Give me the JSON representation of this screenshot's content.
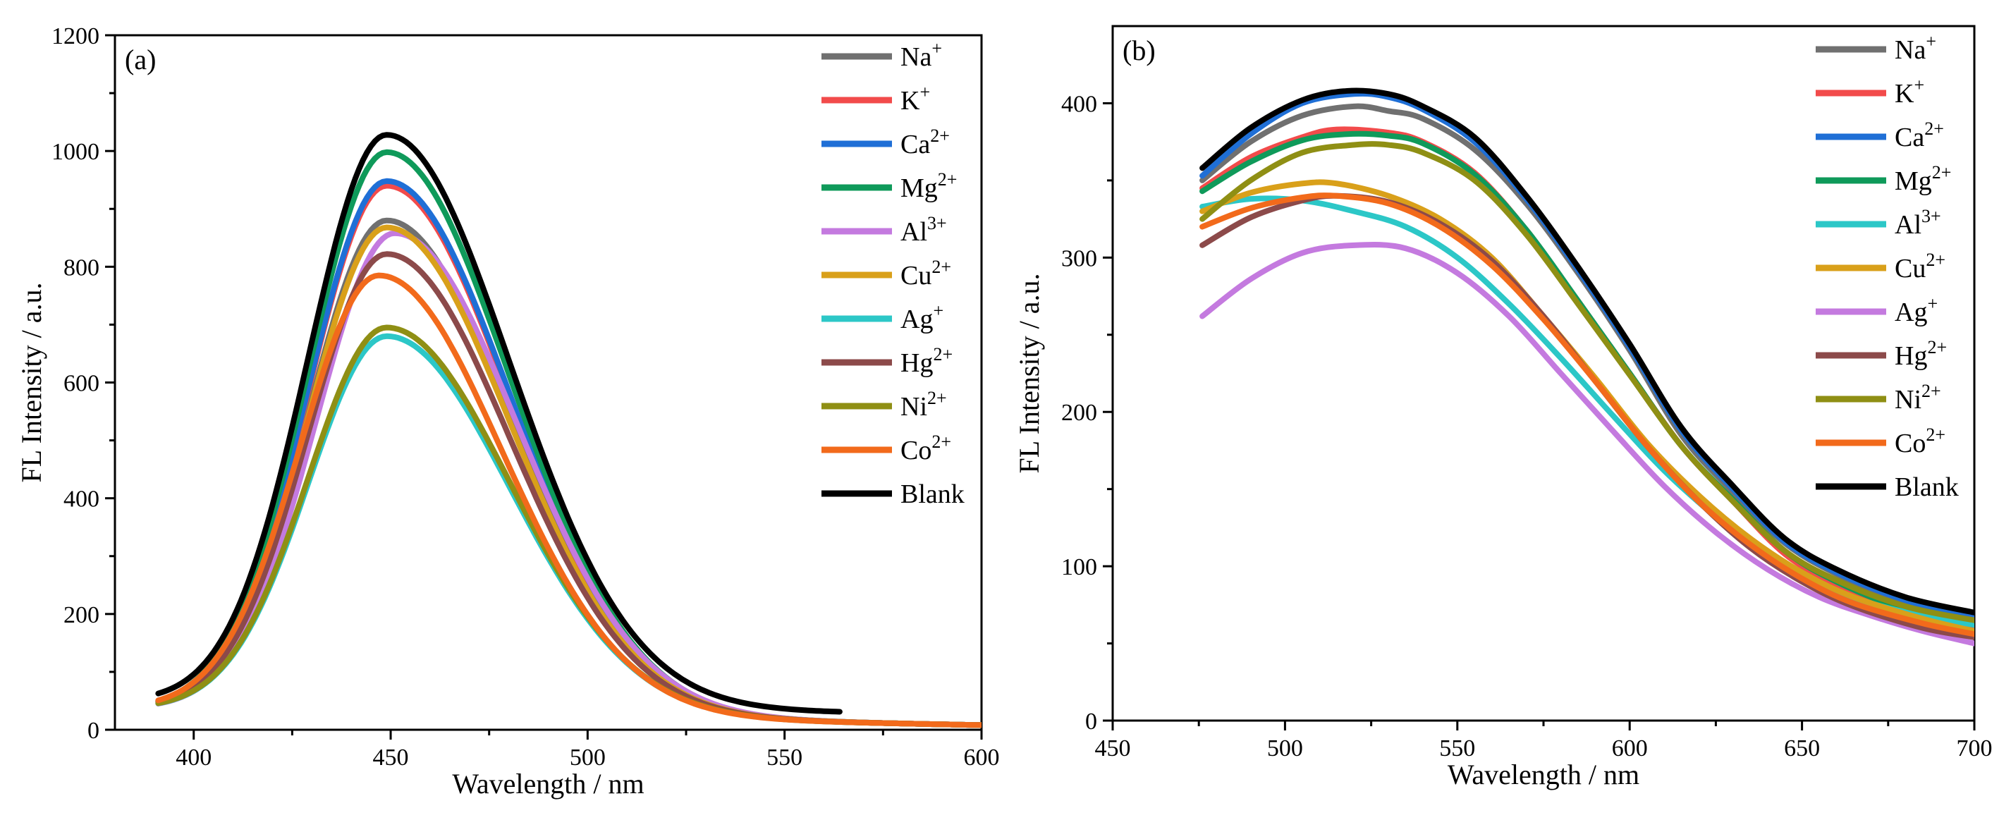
{
  "chart_data": [
    {
      "type": "line",
      "panel_label": "(a)",
      "xlabel": "Wavelength / nm",
      "ylabel": "FL Intensity / a.u.",
      "xlim": [
        380,
        600
      ],
      "ylim": [
        0,
        1200
      ],
      "xticks": [
        400,
        450,
        500,
        550,
        600
      ],
      "yticks": [
        0,
        200,
        400,
        600,
        800,
        1000,
        1200
      ],
      "legend_position": "top-right",
      "series": [
        {
          "name": "Na",
          "sup": "+",
          "color": "#707070",
          "x_start": 391,
          "x_end": 600,
          "peak_x": 449,
          "peak": 880,
          "base_start": 36,
          "base_end": 8
        },
        {
          "name": "K",
          "sup": "+",
          "color": "#f24b4b",
          "x_start": 391,
          "x_end": 600,
          "peak_x": 449,
          "peak": 940,
          "base_start": 36,
          "base_end": 8
        },
        {
          "name": "Ca",
          "sup": "2+",
          "color": "#1f6fd6",
          "x_start": 391,
          "x_end": 600,
          "peak_x": 449,
          "peak": 948,
          "base_start": 36,
          "base_end": 8
        },
        {
          "name": "Mg",
          "sup": "2+",
          "color": "#0f9a5a",
          "x_start": 391,
          "x_end": 600,
          "peak_x": 449,
          "peak": 998,
          "base_start": 36,
          "base_end": 8
        },
        {
          "name": "Al",
          "sup": "3+",
          "color": "#c47adf",
          "x_start": 391,
          "x_end": 600,
          "peak_x": 451,
          "peak": 858,
          "base_start": 36,
          "base_end": 8
        },
        {
          "name": "Cu",
          "sup": "2+",
          "color": "#d9a01a",
          "x_start": 391,
          "x_end": 600,
          "peak_x": 449,
          "peak": 868,
          "base_start": 36,
          "base_end": 8
        },
        {
          "name": "Ag",
          "sup": "+",
          "color": "#2cc7c7",
          "x_start": 391,
          "x_end": 600,
          "peak_x": 449,
          "peak": 680,
          "base_start": 36,
          "base_end": 8
        },
        {
          "name": "Hg",
          "sup": "2+",
          "color": "#8c4a4a",
          "x_start": 391,
          "x_end": 600,
          "peak_x": 449,
          "peak": 822,
          "base_start": 36,
          "base_end": 8
        },
        {
          "name": "Ni",
          "sup": "2+",
          "color": "#8f8f14",
          "x_start": 391,
          "x_end": 600,
          "peak_x": 449,
          "peak": 695,
          "base_start": 36,
          "base_end": 8
        },
        {
          "name": "Co",
          "sup": "2+",
          "color": "#f26a1b",
          "x_start": 391,
          "x_end": 600,
          "peak_x": 447,
          "peak": 785,
          "base_start": 36,
          "base_end": 8
        },
        {
          "name": "Blank",
          "sup": "",
          "color": "#000000",
          "x_start": 391,
          "x_end": 564,
          "peak_x": 449,
          "peak": 1028,
          "base_start": 48,
          "base_end": 30
        }
      ]
    },
    {
      "type": "line",
      "panel_label": "(b)",
      "xlabel": "Wavelength / nm",
      "ylabel": "FL Intensity / a.u.",
      "xlim": [
        450,
        700
      ],
      "ylim": [
        0,
        450
      ],
      "xticks": [
        450,
        500,
        550,
        600,
        650,
        700
      ],
      "yticks": [
        0,
        100,
        200,
        300,
        400
      ],
      "legend_position": "top-right",
      "series": [
        {
          "name": "Na",
          "sup": "+",
          "color": "#707070",
          "points": [
            [
              476,
              350
            ],
            [
              490,
              375
            ],
            [
              505,
              392
            ],
            [
              520,
              398
            ],
            [
              530,
              395
            ],
            [
              540,
              390
            ],
            [
              555,
              370
            ],
            [
              570,
              335
            ],
            [
              585,
              290
            ],
            [
              600,
              240
            ],
            [
              615,
              185
            ],
            [
              630,
              148
            ],
            [
              645,
              115
            ],
            [
              660,
              95
            ],
            [
              680,
              76
            ],
            [
              700,
              66
            ]
          ]
        },
        {
          "name": "K",
          "sup": "+",
          "color": "#f24b4b",
          "points": [
            [
              476,
              345
            ],
            [
              490,
              365
            ],
            [
              505,
              378
            ],
            [
              515,
              383
            ],
            [
              530,
              381
            ],
            [
              540,
              375
            ],
            [
              555,
              355
            ],
            [
              570,
              318
            ],
            [
              585,
              272
            ],
            [
              600,
              225
            ],
            [
              615,
              178
            ],
            [
              630,
              142
            ],
            [
              645,
              108
            ],
            [
              660,
              88
            ],
            [
              680,
              70
            ],
            [
              700,
              60
            ]
          ]
        },
        {
          "name": "Ca",
          "sup": "2+",
          "color": "#1f6fd6",
          "points": [
            [
              476,
              353
            ],
            [
              490,
              380
            ],
            [
              505,
              400
            ],
            [
              520,
              406
            ],
            [
              530,
              404
            ],
            [
              540,
              396
            ],
            [
              555,
              375
            ],
            [
              570,
              338
            ],
            [
              585,
              292
            ],
            [
              600,
              242
            ],
            [
              615,
              188
            ],
            [
              630,
              150
            ],
            [
              645,
              116
            ],
            [
              660,
              96
            ],
            [
              680,
              78
            ],
            [
              700,
              68
            ]
          ]
        },
        {
          "name": "Mg",
          "sup": "2+",
          "color": "#0f9a5a",
          "points": [
            [
              476,
              343
            ],
            [
              490,
              362
            ],
            [
              505,
              376
            ],
            [
              518,
              380
            ],
            [
              530,
              379
            ],
            [
              540,
              374
            ],
            [
              555,
              354
            ],
            [
              570,
              318
            ],
            [
              585,
              272
            ],
            [
              600,
              225
            ],
            [
              615,
              178
            ],
            [
              630,
              143
            ],
            [
              645,
              110
            ],
            [
              660,
              90
            ],
            [
              680,
              72
            ],
            [
              700,
              62
            ]
          ]
        },
        {
          "name": "Al",
          "sup": "3+",
          "color": "#2cc7c7",
          "points": [
            [
              476,
              333
            ],
            [
              490,
              338
            ],
            [
              505,
              337
            ],
            [
              520,
              330
            ],
            [
              535,
              320
            ],
            [
              550,
              300
            ],
            [
              565,
              270
            ],
            [
              580,
              235
            ],
            [
              595,
              198
            ],
            [
              610,
              162
            ],
            [
              625,
              132
            ],
            [
              640,
              106
            ],
            [
              655,
              88
            ],
            [
              670,
              76
            ],
            [
              685,
              68
            ],
            [
              700,
              62
            ]
          ]
        },
        {
          "name": "Cu",
          "sup": "2+",
          "color": "#d9a01a",
          "points": [
            [
              476,
              330
            ],
            [
              490,
              342
            ],
            [
              505,
              348
            ],
            [
              515,
              348
            ],
            [
              530,
              340
            ],
            [
              545,
              325
            ],
            [
              560,
              300
            ],
            [
              575,
              262
            ],
            [
              590,
              222
            ],
            [
              605,
              180
            ],
            [
              620,
              146
            ],
            [
              635,
              118
            ],
            [
              650,
              96
            ],
            [
              665,
              80
            ],
            [
              685,
              66
            ],
            [
              700,
              58
            ]
          ]
        },
        {
          "name": "Ag",
          "sup": "+",
          "color": "#c47adf",
          "points": [
            [
              476,
              262
            ],
            [
              490,
              286
            ],
            [
              505,
              303
            ],
            [
              520,
              308
            ],
            [
              535,
              306
            ],
            [
              550,
              290
            ],
            [
              565,
              262
            ],
            [
              580,
              225
            ],
            [
              595,
              188
            ],
            [
              610,
              152
            ],
            [
              625,
              122
            ],
            [
              640,
              98
            ],
            [
              655,
              80
            ],
            [
              670,
              68
            ],
            [
              685,
              58
            ],
            [
              700,
              50
            ]
          ]
        },
        {
          "name": "Hg",
          "sup": "2+",
          "color": "#8c4a4a",
          "points": [
            [
              476,
              308
            ],
            [
              490,
              326
            ],
            [
              505,
              337
            ],
            [
              515,
              340
            ],
            [
              530,
              336
            ],
            [
              545,
              322
            ],
            [
              560,
              298
            ],
            [
              575,
              262
            ],
            [
              590,
              220
            ],
            [
              605,
              178
            ],
            [
              620,
              142
            ],
            [
              635,
              112
            ],
            [
              650,
              90
            ],
            [
              665,
              74
            ],
            [
              685,
              60
            ],
            [
              700,
              54
            ]
          ]
        },
        {
          "name": "Ni",
          "sup": "2+",
          "color": "#8f8f14",
          "points": [
            [
              476,
              325
            ],
            [
              490,
              350
            ],
            [
              505,
              368
            ],
            [
              520,
              373
            ],
            [
              530,
              373
            ],
            [
              540,
              368
            ],
            [
              555,
              350
            ],
            [
              570,
              315
            ],
            [
              585,
              270
            ],
            [
              600,
              224
            ],
            [
              615,
              178
            ],
            [
              630,
              142
            ],
            [
              645,
              110
            ],
            [
              660,
              91
            ],
            [
              680,
              74
            ],
            [
              700,
              65
            ]
          ]
        },
        {
          "name": "Co",
          "sup": "2+",
          "color": "#f26a1b",
          "points": [
            [
              476,
              320
            ],
            [
              490,
              332
            ],
            [
              505,
              339
            ],
            [
              515,
              340
            ],
            [
              530,
              335
            ],
            [
              545,
              320
            ],
            [
              560,
              295
            ],
            [
              575,
              260
            ],
            [
              590,
              220
            ],
            [
              605,
              178
            ],
            [
              620,
              142
            ],
            [
              635,
              114
            ],
            [
              650,
              92
            ],
            [
              665,
              76
            ],
            [
              685,
              63
            ],
            [
              700,
              56
            ]
          ]
        },
        {
          "name": "Blank",
          "sup": "",
          "color": "#000000",
          "points": [
            [
              476,
              358
            ],
            [
              490,
              384
            ],
            [
              505,
              402
            ],
            [
              518,
              408
            ],
            [
              530,
              406
            ],
            [
              540,
              398
            ],
            [
              555,
              378
            ],
            [
              570,
              340
            ],
            [
              585,
              294
            ],
            [
              600,
              244
            ],
            [
              615,
              190
            ],
            [
              630,
              152
            ],
            [
              645,
              118
            ],
            [
              660,
              98
            ],
            [
              680,
              80
            ],
            [
              700,
              70
            ]
          ]
        }
      ]
    }
  ]
}
